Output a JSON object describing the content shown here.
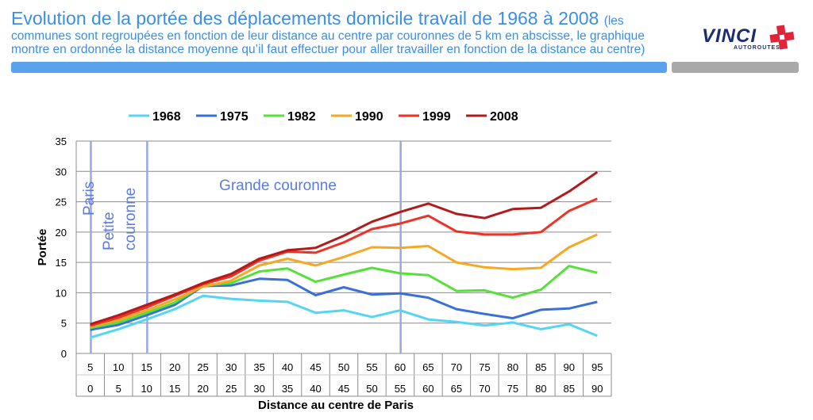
{
  "header": {
    "title": "Evolution de la portée des déplacements domicile travail de 1968 à 2008",
    "subtitle_line1": "(les",
    "subtitle_line2": "communes sont regroupées en fonction de leur distance au centre par couronnes de 5 km en abscisse, le graphique",
    "subtitle_line3": "montre en ordonnée la distance moyenne qu’il faut effectuer pour aller travailler en fonction de la distance au centre)"
  },
  "logo": {
    "word": "VINCI",
    "sub": "AUTOROUTES",
    "colors": {
      "text": "#1b2e6e",
      "cross": "#e2233a"
    }
  },
  "colors": {
    "title": "#3a8ee6",
    "banner": "#5aa3ec",
    "banner_right": "#a9a9a9"
  },
  "chart_data": {
    "type": "line",
    "title": "",
    "xlabel": "Distance au centre de Paris",
    "ylabel": "Portée",
    "ylim": [
      0,
      35
    ],
    "yticks": [
      0,
      5,
      10,
      15,
      20,
      25,
      30,
      35
    ],
    "grid": true,
    "legend_position": "top",
    "x_row1": [
      "5",
      "10",
      "15",
      "20",
      "25",
      "30",
      "35",
      "40",
      "45",
      "50",
      "55",
      "60",
      "65",
      "70",
      "75",
      "80",
      "85",
      "90",
      "95"
    ],
    "x_row2": [
      "0",
      "5",
      "10",
      "15",
      "20",
      "25",
      "30",
      "35",
      "40",
      "45",
      "50",
      "55",
      "60",
      "65",
      "70",
      "75",
      "80",
      "85",
      "90"
    ],
    "series": [
      {
        "name": "1968",
        "color": "#56d4f4",
        "values": [
          2.6,
          4.0,
          5.6,
          7.3,
          9.5,
          9.0,
          8.7,
          8.5,
          6.7,
          7.1,
          6.0,
          7.1,
          5.6,
          5.2,
          4.6,
          5.1,
          4.0,
          4.8,
          2.9
        ]
      },
      {
        "name": "1975",
        "color": "#3a6fd8",
        "values": [
          3.9,
          4.7,
          6.3,
          8.0,
          11.1,
          11.2,
          12.3,
          12.1,
          9.6,
          10.9,
          9.7,
          9.9,
          9.2,
          7.3,
          6.5,
          5.8,
          7.2,
          7.4,
          8.5
        ]
      },
      {
        "name": "1982",
        "color": "#55e03a",
        "values": [
          4.2,
          5.1,
          6.7,
          8.4,
          11.2,
          11.6,
          13.5,
          14.0,
          11.8,
          13.0,
          14.1,
          13.2,
          12.9,
          10.3,
          10.4,
          9.2,
          10.5,
          14.4,
          13.3
        ]
      },
      {
        "name": "1990",
        "color": "#f7a823",
        "values": [
          4.4,
          5.5,
          7.1,
          8.9,
          11.0,
          12.0,
          14.5,
          15.6,
          14.5,
          15.9,
          17.5,
          17.4,
          17.7,
          15.0,
          14.2,
          13.9,
          14.1,
          17.5,
          19.6
        ]
      },
      {
        "name": "1999",
        "color": "#ec3326",
        "values": [
          4.6,
          5.9,
          7.6,
          9.5,
          11.4,
          12.7,
          15.3,
          16.8,
          16.6,
          18.3,
          20.5,
          21.4,
          22.7,
          20.1,
          19.6,
          19.6,
          20.0,
          23.5,
          25.5
        ]
      },
      {
        "name": "2008",
        "color": "#b31b1b",
        "values": [
          4.8,
          6.3,
          8.0,
          9.7,
          11.6,
          13.1,
          15.6,
          17.0,
          17.4,
          19.4,
          21.7,
          23.3,
          24.7,
          23.0,
          22.3,
          23.8,
          24.0,
          26.7,
          29.9
        ]
      }
    ],
    "annotations": [
      {
        "label": "Paris",
        "after_index": 0,
        "has_line": true
      },
      {
        "label": "Petite couronne",
        "after_index": 2,
        "has_line": true
      },
      {
        "label": "Grande couronne",
        "after_index": 11,
        "has_line": true
      }
    ]
  }
}
